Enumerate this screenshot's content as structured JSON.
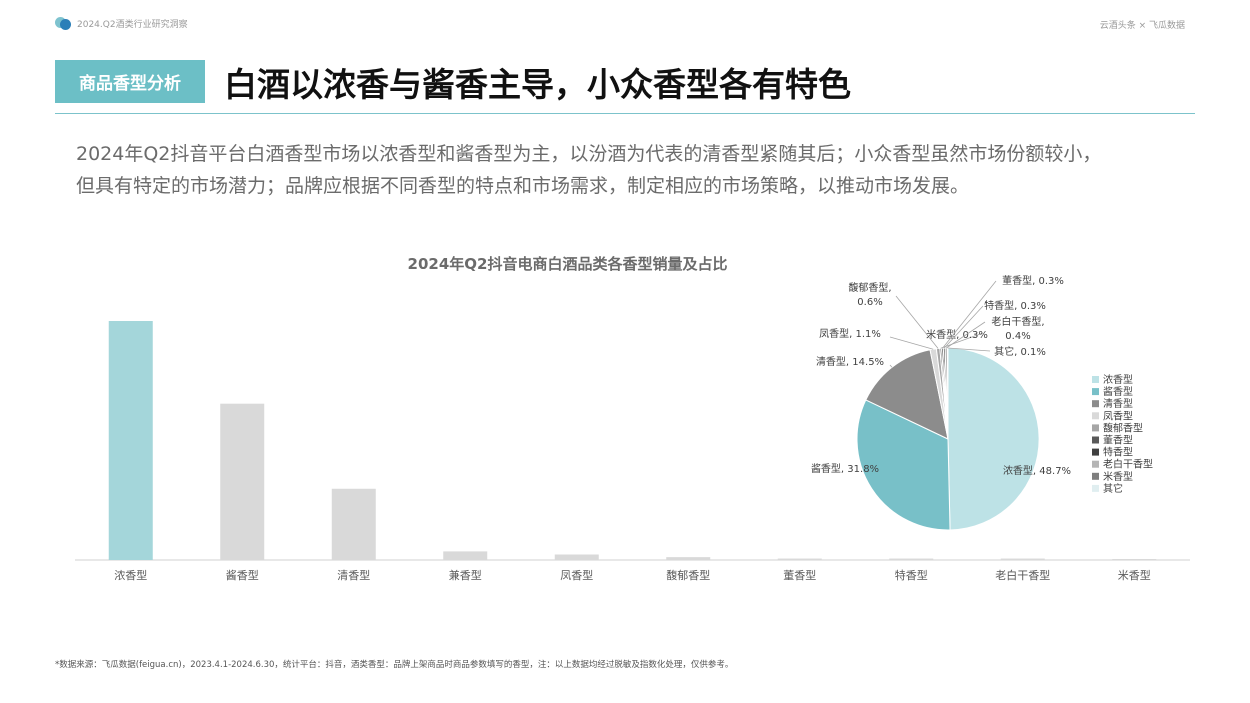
{
  "header": {
    "report_name": "2024.Q2酒类行业研究洞察",
    "brand": "云酒头条 × 飞瓜数据"
  },
  "section": {
    "tag": "商品香型分析",
    "headline": "白酒以浓香与酱香主导，小众香型各有特色"
  },
  "intro": {
    "line1": "2024年Q2抖音平台白酒香型市场以浓香型和酱香型为主，以汾酒为代表的清香型紧随其后；小众香型虽然市场份额较小，",
    "line2": "但具有特定的市场潜力；品牌应根据不同香型的特点和市场需求，制定相应的市场策略，以推动市场发展。"
  },
  "chart_title": "2024年Q2抖音电商白酒品类各香型销量及占比",
  "chart_data": [
    {
      "type": "bar",
      "title": "2024年Q2抖音电商白酒品类各香型销量及占比",
      "categories": [
        "浓香型",
        "酱香型",
        "清香型",
        "兼香型",
        "凤香型",
        "馥郁香型",
        "董香型",
        "特香型",
        "老白干香型",
        "米香型"
      ],
      "values": [
        100,
        65.4,
        29.8,
        3.6,
        2.3,
        1.2,
        0.6,
        0.6,
        0.6,
        0.4
      ],
      "value_unit": "relative index (no axis scale shown)",
      "colors": [
        "#a4d6da",
        "#d9d9d9",
        "#d9d9d9",
        "#d9d9d9",
        "#d9d9d9",
        "#d9d9d9",
        "#d9d9d9",
        "#d9d9d9",
        "#d9d9d9",
        "#d9d9d9"
      ],
      "grid": false
    },
    {
      "type": "pie",
      "slices": [
        {
          "label": "浓香型",
          "value": 48.7,
          "display": "48.7%",
          "color": "#bde2e6"
        },
        {
          "label": "酱香型",
          "value": 31.8,
          "display": "31.8%",
          "color": "#78c0c8"
        },
        {
          "label": "清香型",
          "value": 14.5,
          "display": "14.5%",
          "color": "#8c8c8c"
        },
        {
          "label": "凤香型",
          "value": 1.1,
          "display": "1.1%",
          "color": "#d9d9d9"
        },
        {
          "label": "馥郁香型",
          "value": 0.6,
          "display": "0.6%",
          "color": "#a6a6a6"
        },
        {
          "label": "米香型",
          "value": 0.3,
          "display": "0.3%",
          "color": "#7f7f7f"
        },
        {
          "label": "董香型",
          "value": 0.3,
          "display": "0.3%",
          "color": "#595959"
        },
        {
          "label": "特香型",
          "value": 0.3,
          "display": "0.3%",
          "color": "#404040"
        },
        {
          "label": "老白干香型",
          "value": 0.4,
          "display": "0.4%",
          "color": "#b5b5b5"
        },
        {
          "label": "其它",
          "value": 0.1,
          "display": "0.1%",
          "color": "#e0eef0"
        }
      ],
      "legend": [
        "浓香型",
        "酱香型",
        "清香型",
        "凤香型",
        "馥郁香型",
        "董香型",
        "特香型",
        "老白干香型",
        "米香型",
        "其它"
      ],
      "legend_position": "right"
    }
  ],
  "footnote": "*数据来源：飞瓜数据(feigua.cn)，2023.4.1-2024.6.30，统计平台：抖音，酒类香型：品牌上架商品时商品参数填写的香型，注：以上数据均经过脱敏及指数化处理，仅供参考。"
}
